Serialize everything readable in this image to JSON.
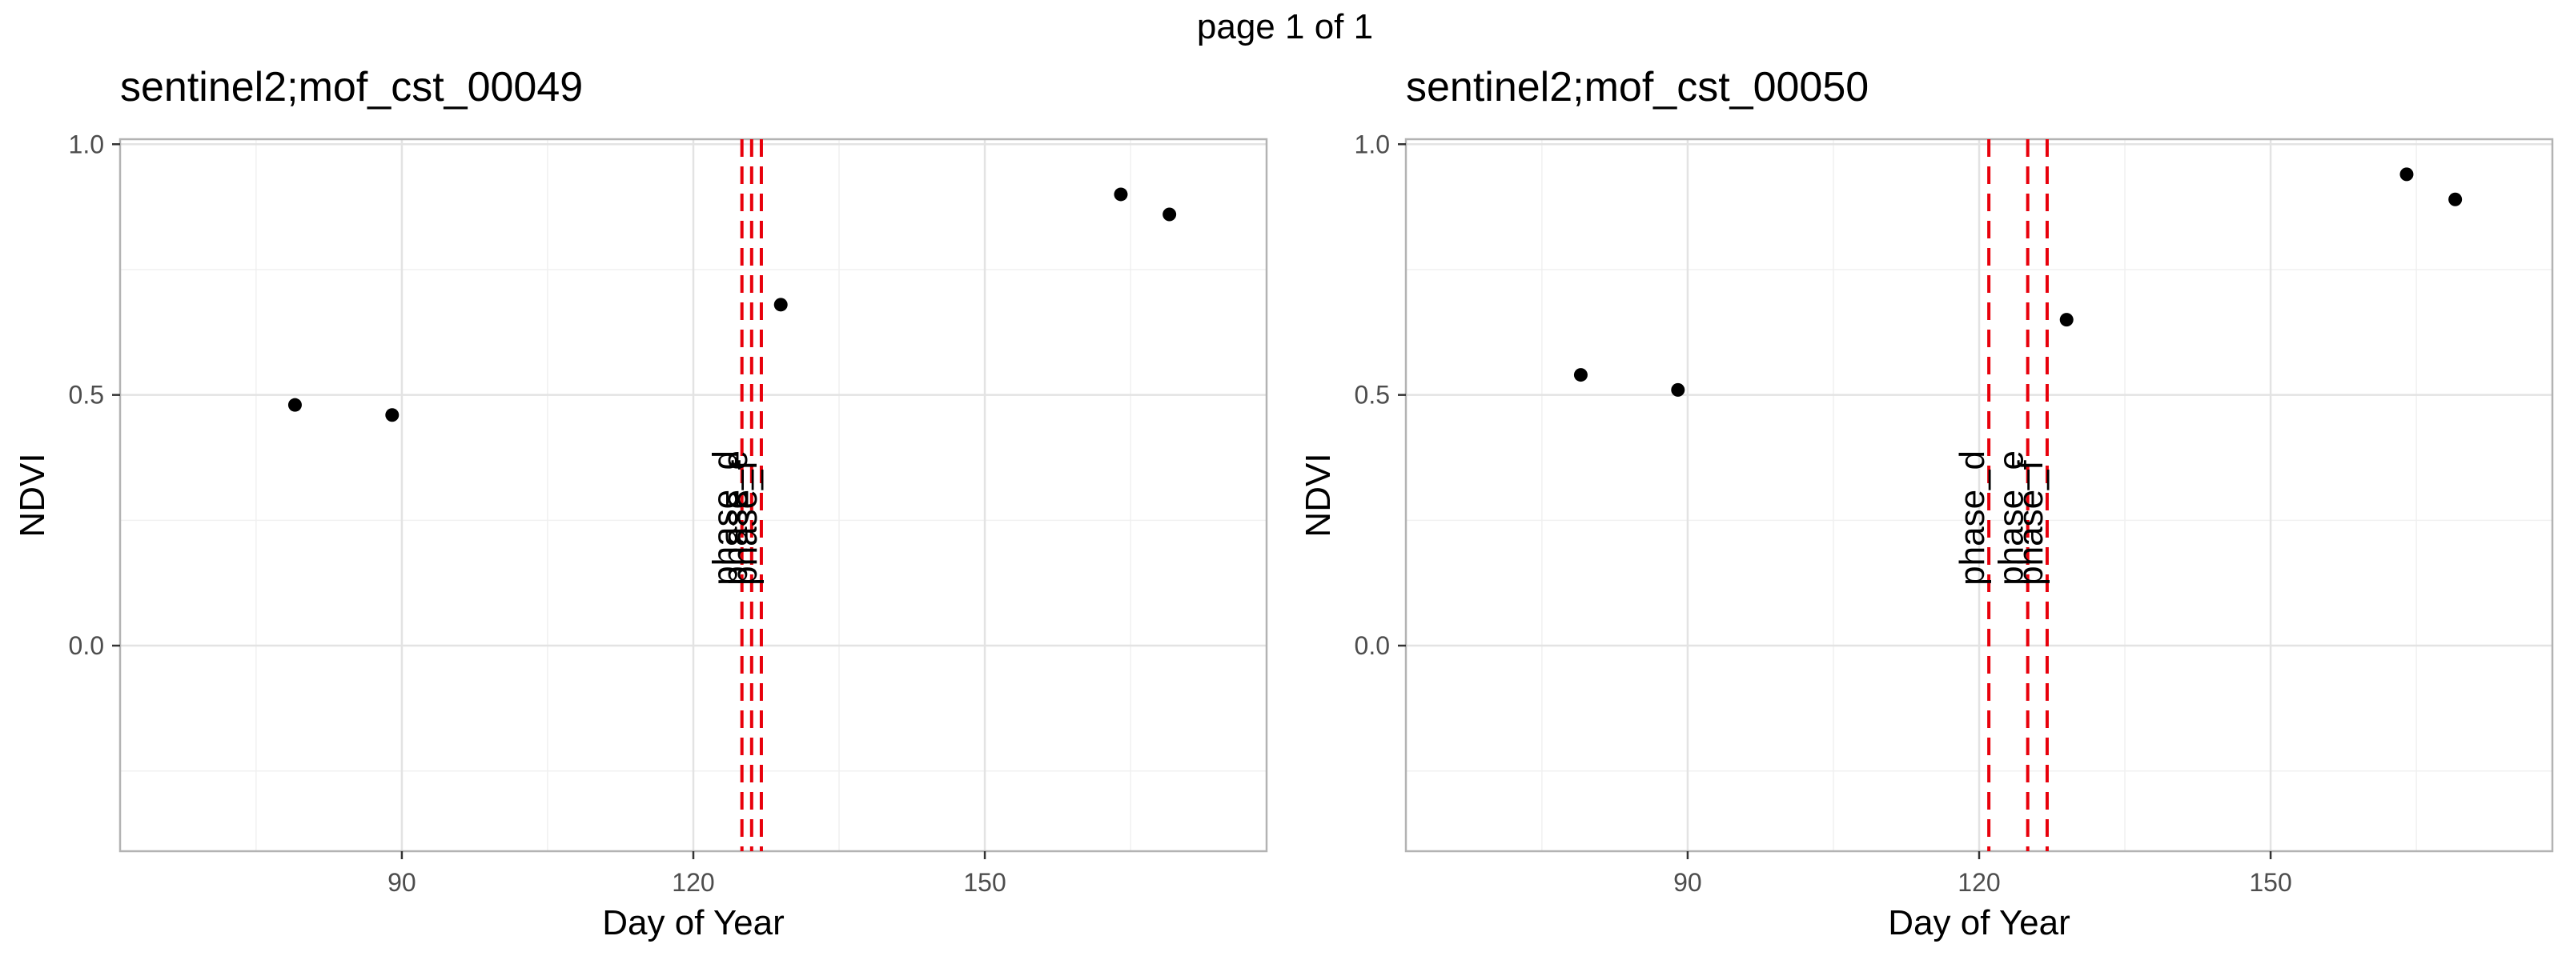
{
  "page": {
    "title": "page 1 of 1"
  },
  "chart_data": [
    {
      "type": "scatter",
      "title": "sentinel2;mof_cst_00049",
      "xlabel": "Day of Year",
      "ylabel": "NDVI",
      "xlim": [
        61,
        179
      ],
      "ylim": [
        -0.41,
        1.01
      ],
      "xticks": [
        90,
        120,
        150
      ],
      "yticks": [
        0.0,
        0.5,
        1.0
      ],
      "ytick_labels": [
        "0.0",
        "0.5",
        "1.0"
      ],
      "grid": true,
      "points": [
        {
          "x": 79,
          "y": 0.48
        },
        {
          "x": 89,
          "y": 0.46
        },
        {
          "x": 129,
          "y": 0.68
        },
        {
          "x": 164,
          "y": 0.9
        },
        {
          "x": 169,
          "y": 0.86
        }
      ],
      "vlines": [
        {
          "x": 125,
          "label": "phase_d",
          "color": "#e8000b"
        },
        {
          "x": 126,
          "label": "phase_e",
          "color": "#e8000b"
        },
        {
          "x": 127,
          "label": "phase_f",
          "color": "#e8000b"
        }
      ]
    },
    {
      "type": "scatter",
      "title": "sentinel2;mof_cst_00050",
      "xlabel": "Day of Year",
      "ylabel": "NDVI",
      "xlim": [
        61,
        179
      ],
      "ylim": [
        -0.41,
        1.01
      ],
      "xticks": [
        90,
        120,
        150
      ],
      "yticks": [
        0.0,
        0.5,
        1.0
      ],
      "ytick_labels": [
        "0.0",
        "0.5",
        "1.0"
      ],
      "grid": true,
      "points": [
        {
          "x": 79,
          "y": 0.54
        },
        {
          "x": 89,
          "y": 0.51
        },
        {
          "x": 129,
          "y": 0.65
        },
        {
          "x": 164,
          "y": 0.94
        },
        {
          "x": 169,
          "y": 0.89
        }
      ],
      "vlines": [
        {
          "x": 121,
          "label": "phase_d",
          "color": "#e8000b"
        },
        {
          "x": 125,
          "label": "phase_e",
          "color": "#e8000b"
        },
        {
          "x": 127,
          "label": "phase_f",
          "color": "#e8000b"
        }
      ]
    }
  ]
}
